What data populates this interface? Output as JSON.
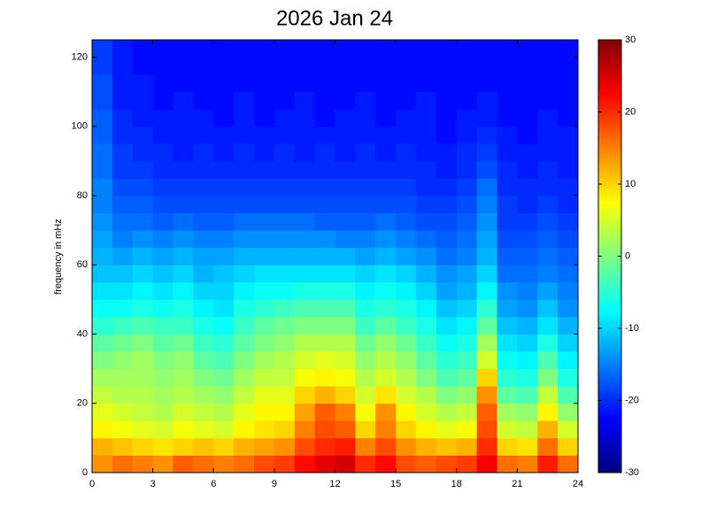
{
  "chart_data": {
    "type": "heatmap",
    "title": "2026 Jan 24",
    "ylabel": "frequency in mHz",
    "colormap": "jet",
    "xlim": [
      0,
      24
    ],
    "xticks": [
      0,
      3,
      6,
      9,
      12,
      15,
      18,
      21,
      24
    ],
    "ylim": [
      0,
      125
    ],
    "yticks": [
      0,
      20,
      40,
      60,
      80,
      100,
      120
    ],
    "zlim": [
      -30,
      30
    ],
    "zticks": [
      -30,
      -20,
      -10,
      0,
      10,
      20,
      30
    ],
    "x_edges": [
      0,
      1,
      2,
      3,
      4,
      5,
      6,
      7,
      8,
      9,
      10,
      11,
      12,
      13,
      14,
      15,
      16,
      17,
      18,
      19,
      20,
      21,
      22,
      23,
      24
    ],
    "y_edges": [
      0,
      5,
      10,
      15,
      20,
      25,
      30,
      35,
      40,
      45,
      50,
      55,
      60,
      65,
      70,
      75,
      80,
      85,
      90,
      95,
      100,
      105,
      110,
      115,
      120,
      125
    ],
    "z": [
      [
        14,
        16,
        15,
        14,
        17,
        16,
        15,
        16,
        18,
        19,
        22,
        24,
        25,
        20,
        22,
        18,
        17,
        18,
        19,
        23,
        16,
        15,
        21,
        16
      ],
      [
        12,
        11,
        10,
        9,
        10,
        11,
        10,
        12,
        13,
        14,
        18,
        20,
        21,
        15,
        18,
        14,
        12,
        11,
        12,
        20,
        10,
        9,
        16,
        10
      ],
      [
        8,
        7,
        6,
        5,
        7,
        6,
        5,
        8,
        9,
        10,
        15,
        18,
        17,
        10,
        15,
        10,
        8,
        6,
        7,
        18,
        5,
        4,
        12,
        5
      ],
      [
        6,
        5,
        4,
        3,
        5,
        4,
        3,
        6,
        8,
        8,
        13,
        17,
        15,
        7,
        14,
        8,
        5,
        3,
        4,
        17,
        2,
        1,
        8,
        1
      ],
      [
        4,
        3,
        3,
        2,
        3,
        2,
        1,
        4,
        6,
        6,
        10,
        12,
        10,
        5,
        9,
        5,
        3,
        0,
        1,
        14,
        -2,
        -3,
        4,
        -3
      ],
      [
        2,
        2,
        2,
        1,
        2,
        0,
        -1,
        2,
        4,
        4,
        7,
        8,
        7,
        3,
        5,
        3,
        0,
        -3,
        -2,
        10,
        -5,
        -6,
        0,
        -6
      ],
      [
        0,
        1,
        2,
        0,
        1,
        -2,
        -3,
        0,
        2,
        3,
        5,
        6,
        5,
        1,
        3,
        1,
        -2,
        -5,
        -4,
        5,
        -7,
        -8,
        -3,
        -8
      ],
      [
        -2,
        -1,
        0,
        -2,
        -1,
        -4,
        -5,
        -2,
        0,
        1,
        3,
        3,
        3,
        -1,
        1,
        -1,
        -4,
        -7,
        -6,
        2,
        -9,
        -10,
        -6,
        -10
      ],
      [
        -5,
        -4,
        -3,
        -4,
        -4,
        -6,
        -7,
        -4,
        -2,
        -1,
        0,
        0,
        0,
        -4,
        -2,
        -4,
        -6,
        -9,
        -8,
        -2,
        -11,
        -12,
        -9,
        -12
      ],
      [
        -7,
        -7,
        -6,
        -7,
        -6,
        -8,
        -9,
        -6,
        -5,
        -4,
        -3,
        -3,
        -3,
        -6,
        -5,
        -6,
        -8,
        -11,
        -10,
        -5,
        -13,
        -14,
        -11,
        -14
      ],
      [
        -9,
        -9,
        -8,
        -9,
        -8,
        -10,
        -10,
        -8,
        -7,
        -7,
        -6,
        -6,
        -6,
        -8,
        -7,
        -8,
        -10,
        -13,
        -12,
        -8,
        -14,
        -15,
        -13,
        -15
      ],
      [
        -11,
        -11,
        -10,
        -11,
        -10,
        -12,
        -11,
        -10,
        -9,
        -9,
        -9,
        -9,
        -9,
        -10,
        -9,
        -10,
        -12,
        -14,
        -13,
        -10,
        -16,
        -16,
        -15,
        -16
      ],
      [
        -12,
        -13,
        -12,
        -13,
        -12,
        -13,
        -13,
        -12,
        -12,
        -12,
        -12,
        -12,
        -12,
        -13,
        -12,
        -13,
        -14,
        -16,
        -15,
        -12,
        -17,
        -17,
        -16,
        -17
      ],
      [
        -13,
        -15,
        -14,
        -15,
        -14,
        -15,
        -15,
        -14,
        -14,
        -14,
        -14,
        -14,
        -15,
        -15,
        -14,
        -15,
        -16,
        -17,
        -16,
        -13,
        -18,
        -18,
        -17,
        -18
      ],
      [
        -14,
        -16,
        -16,
        -17,
        -16,
        -17,
        -17,
        -16,
        -16,
        -16,
        -16,
        -17,
        -17,
        -17,
        -16,
        -17,
        -18,
        -18,
        -17,
        -14,
        -19,
        -19,
        -18,
        -19
      ],
      [
        -15,
        -17,
        -17,
        -18,
        -18,
        -18,
        -18,
        -18,
        -18,
        -18,
        -18,
        -18,
        -18,
        -18,
        -18,
        -18,
        -19,
        -19,
        -18,
        -15,
        -19,
        -20,
        -19,
        -20
      ],
      [
        -15,
        -18,
        -18,
        -19,
        -19,
        -19,
        -19,
        -19,
        -19,
        -19,
        -19,
        -19,
        -19,
        -19,
        -19,
        -19,
        -20,
        -20,
        -19,
        -16,
        -20,
        -20,
        -20,
        -20
      ],
      [
        -16,
        -19,
        -19,
        -20,
        -20,
        -20,
        -20,
        -20,
        -20,
        -20,
        -20,
        -20,
        -20,
        -20,
        -20,
        -20,
        -20,
        -21,
        -20,
        -18,
        -20,
        -21,
        -20,
        -21
      ],
      [
        -16,
        -19,
        -20,
        -20,
        -21,
        -20,
        -21,
        -20,
        -21,
        -20,
        -21,
        -20,
        -21,
        -20,
        -21,
        -20,
        -21,
        -21,
        -20,
        -19,
        -21,
        -21,
        -21,
        -21
      ],
      [
        -17,
        -20,
        -20,
        -21,
        -21,
        -21,
        -21,
        -21,
        -21,
        -21,
        -21,
        -21,
        -21,
        -21,
        -21,
        -21,
        -21,
        -22,
        -21,
        -20,
        -21,
        -22,
        -21,
        -21
      ],
      [
        -17,
        -20,
        -21,
        -21,
        -21,
        -21,
        -22,
        -21,
        -22,
        -21,
        -21,
        -22,
        -21,
        -21,
        -22,
        -21,
        -21,
        -22,
        -21,
        -21,
        -22,
        -22,
        -21,
        -22
      ],
      [
        -18,
        -21,
        -21,
        -22,
        -21,
        -22,
        -22,
        -21,
        -22,
        -22,
        -21,
        -22,
        -22,
        -21,
        -22,
        -22,
        -21,
        -22,
        -22,
        -21,
        -22,
        -22,
        -22,
        -22
      ],
      [
        -18,
        -21,
        -21,
        -22,
        -22,
        -22,
        -22,
        -22,
        -22,
        -22,
        -22,
        -22,
        -22,
        -22,
        -22,
        -22,
        -22,
        -22,
        -22,
        -22,
        -22,
        -22,
        -22,
        -22
      ],
      [
        -19,
        -21,
        -22,
        -22,
        -22,
        -22,
        -22,
        -22,
        -22,
        -22,
        -22,
        -22,
        -22,
        -22,
        -22,
        -22,
        -22,
        -22,
        -22,
        -22,
        -22,
        -22,
        -22,
        -22
      ],
      [
        -19,
        -21,
        -22,
        -22,
        -22,
        -22,
        -22,
        -22,
        -22,
        -22,
        -22,
        -22,
        -22,
        -22,
        -22,
        -22,
        -22,
        -22,
        -22,
        -22,
        -22,
        -22,
        -22,
        -22
      ]
    ]
  }
}
